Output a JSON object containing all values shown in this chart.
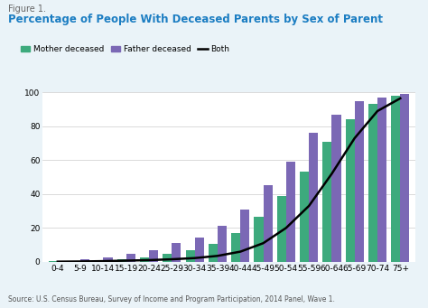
{
  "figure_label": "Figure 1.",
  "title": "Percentage of People With Deceased Parents by Sex of Parent",
  "categories": [
    "0-4",
    "5-9",
    "10-14",
    "15-19",
    "20-24",
    "25-29",
    "30-34",
    "35-39",
    "40-44",
    "45-49",
    "50-54",
    "55-59",
    "60-64",
    "65-69",
    "70-74",
    "75+"
  ],
  "mother_deceased": [
    0.3,
    0.5,
    1.0,
    1.5,
    2.5,
    4.5,
    7.0,
    10.5,
    17.0,
    26.5,
    39.0,
    53.0,
    71.0,
    84.0,
    93.0,
    98.0
  ],
  "father_deceased": [
    0.5,
    1.5,
    2.5,
    4.5,
    7.0,
    11.0,
    14.5,
    21.5,
    31.0,
    45.0,
    59.0,
    76.0,
    87.0,
    95.0,
    97.0,
    99.0
  ],
  "both_line": [
    0.1,
    0.2,
    0.4,
    0.7,
    1.0,
    1.5,
    2.2,
    3.5,
    6.0,
    11.0,
    20.0,
    33.0,
    52.0,
    73.0,
    89.0,
    96.5
  ],
  "mother_color": "#3DAA7D",
  "father_color": "#7B68B5",
  "both_color": "#000000",
  "bar_width": 0.4,
  "ylim": [
    0,
    100
  ],
  "yticks": [
    0,
    20,
    40,
    60,
    80,
    100
  ],
  "legend_mother": "Mother deceased",
  "legend_father": "Father deceased",
  "legend_both": "Both",
  "source_text": "Source: U.S. Census Bureau, Survey of Income and Program Participation, 2014 Panel, Wave 1.",
  "background_color": "#EAF3F8",
  "plot_bg_color": "#FFFFFF",
  "title_color": "#1B7DC2",
  "figure_label_color": "#666666"
}
